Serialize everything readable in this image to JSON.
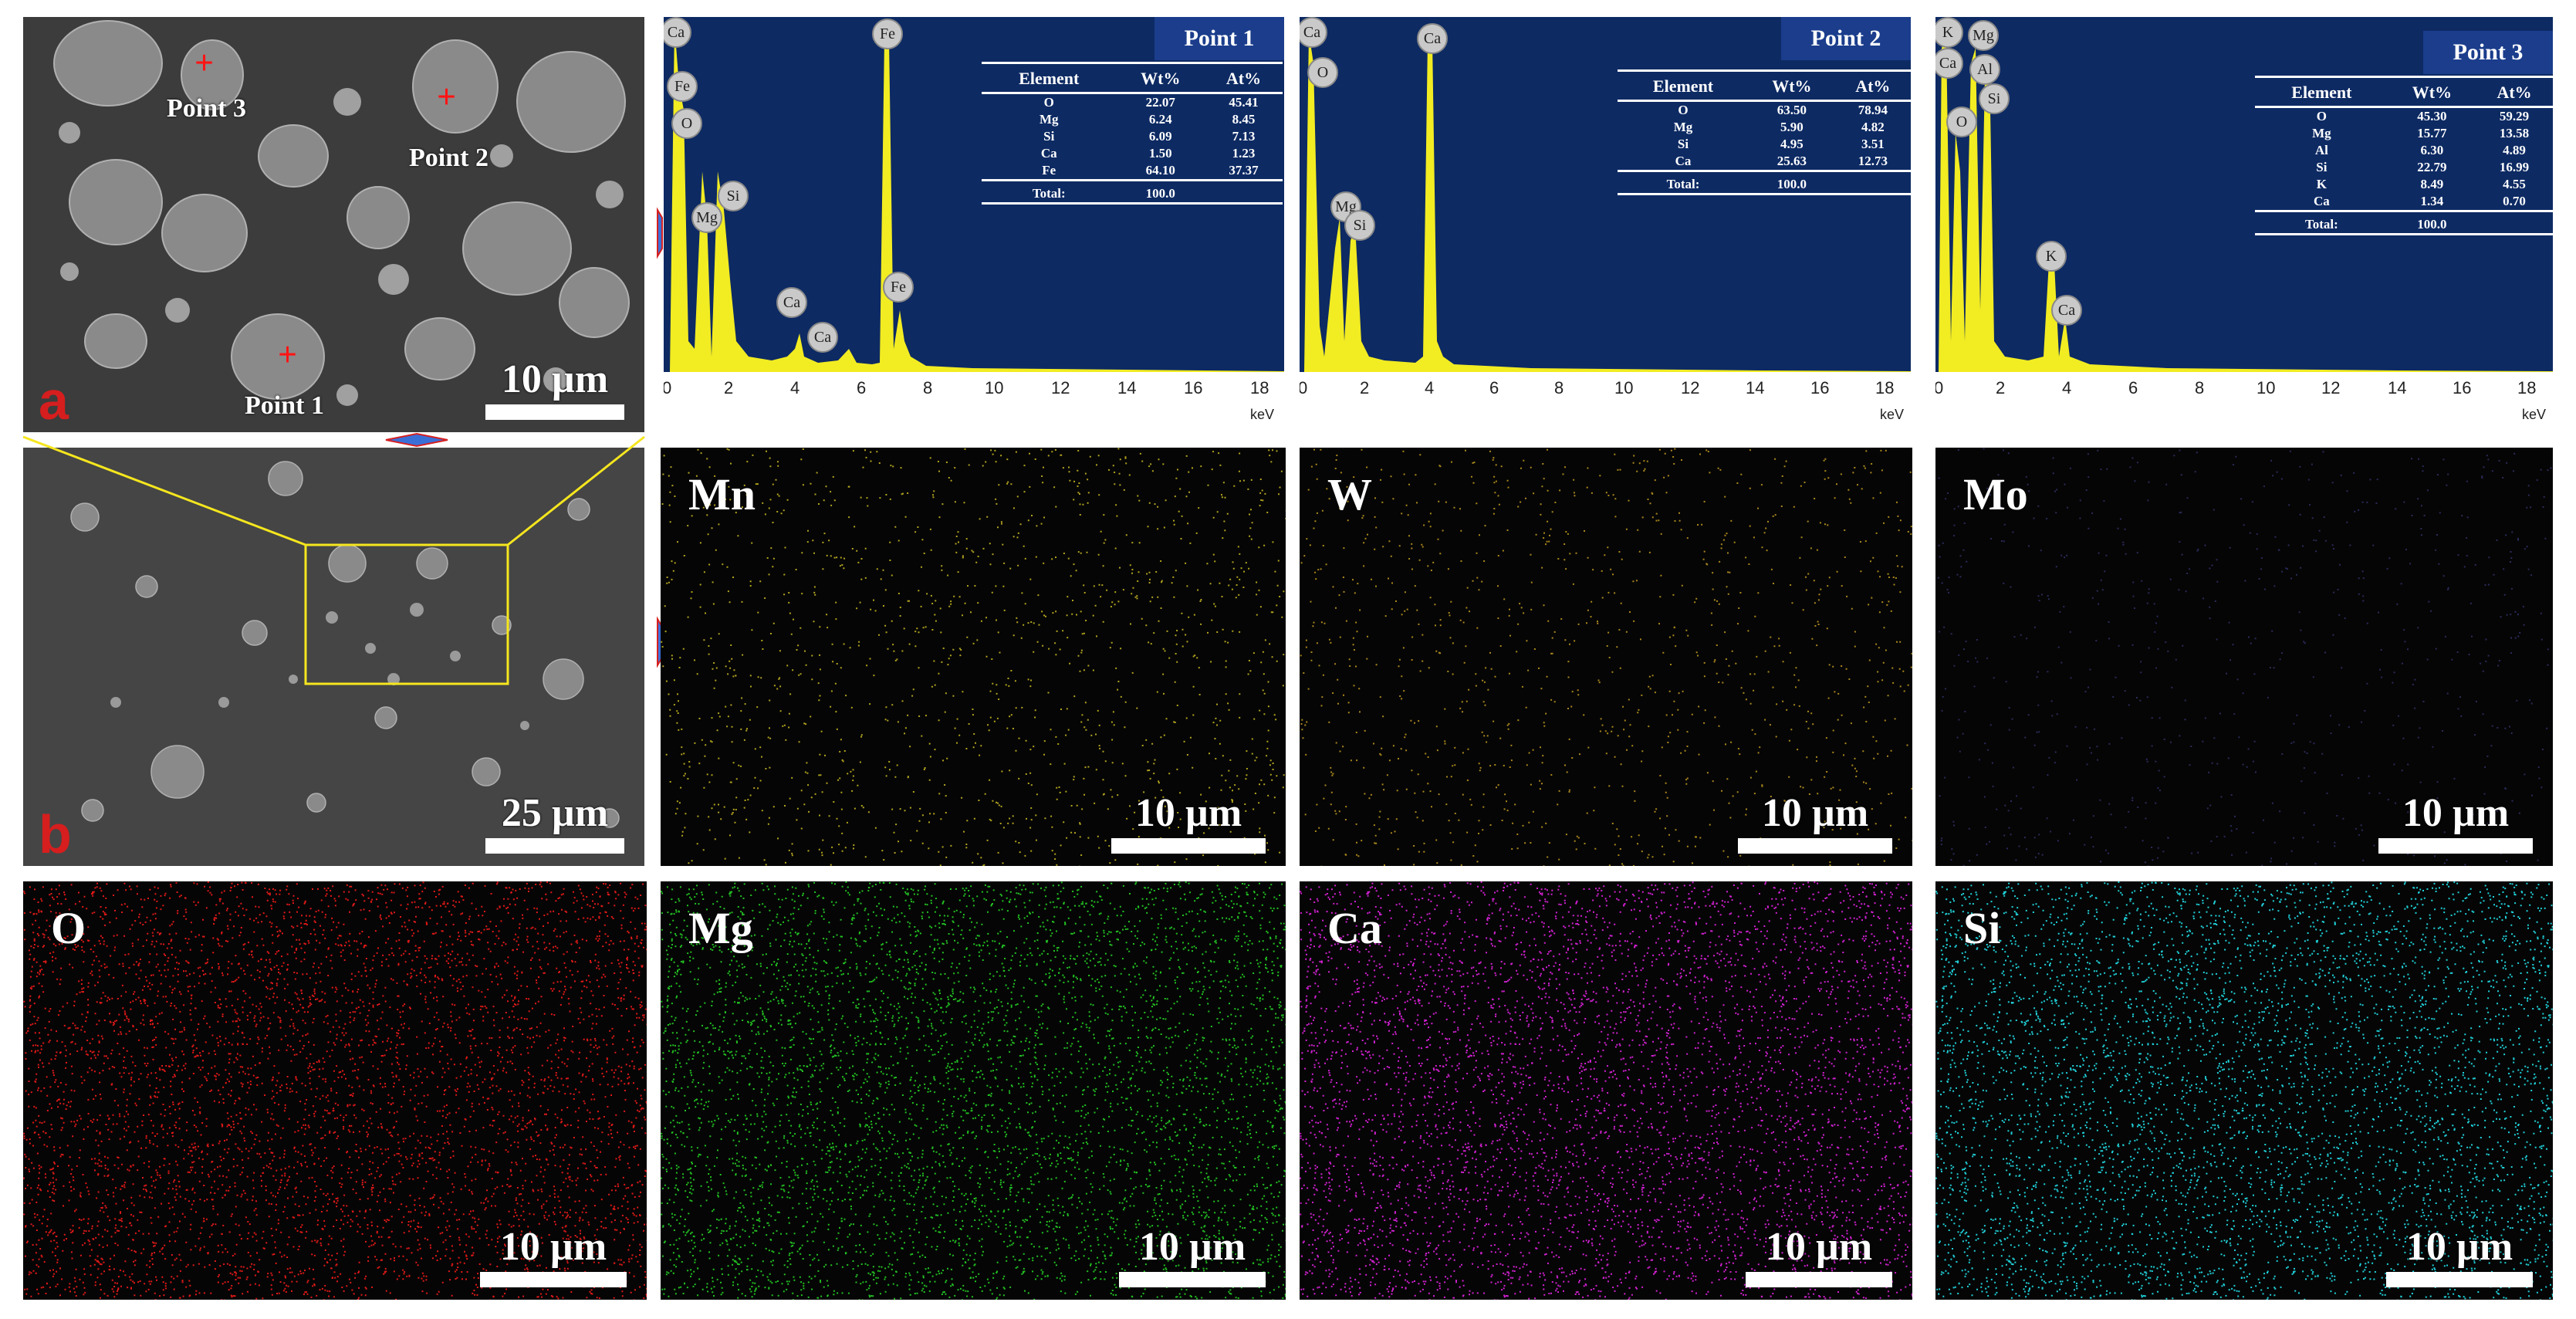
{
  "panel_a": {
    "corner_label": "a",
    "scale": "10 µm",
    "points": [
      "Point 1",
      "Point 2",
      "Point 3"
    ]
  },
  "panel_b": {
    "corner_label": "b",
    "scale": "25 µm"
  },
  "spectra": [
    {
      "title": "Point 1",
      "headers": [
        "Element",
        "Wt%",
        "At%"
      ],
      "rows": [
        [
          "O",
          "22.07",
          "45.41"
        ],
        [
          "Mg",
          "6.24",
          "8.45"
        ],
        [
          "Si",
          "6.09",
          "7.13"
        ],
        [
          "Ca",
          "1.50",
          "1.23"
        ],
        [
          "Fe",
          "64.10",
          "37.37"
        ]
      ],
      "total": [
        "Total:",
        "100.0"
      ],
      "peak_labels": [
        "Ca",
        "Fe",
        "O",
        "Mg",
        "Si",
        "Ca",
        "Ca",
        "Fe",
        "Fe"
      ]
    },
    {
      "title": "Point 2",
      "headers": [
        "Element",
        "Wt%",
        "At%"
      ],
      "rows": [
        [
          "O",
          "63.50",
          "78.94"
        ],
        [
          "Mg",
          "5.90",
          "4.82"
        ],
        [
          "Si",
          "4.95",
          "3.51"
        ],
        [
          "Ca",
          "25.63",
          "12.73"
        ]
      ],
      "total": [
        "Total:",
        "100.0"
      ],
      "peak_labels": [
        "Ca",
        "O",
        "Mg",
        "Si",
        "Ca"
      ]
    },
    {
      "title": "Point 3",
      "headers": [
        "Element",
        "Wt%",
        "At%"
      ],
      "rows": [
        [
          "O",
          "45.30",
          "59.29"
        ],
        [
          "Mg",
          "15.77",
          "13.58"
        ],
        [
          "Al",
          "6.30",
          "4.89"
        ],
        [
          "Si",
          "22.79",
          "16.99"
        ],
        [
          "K",
          "8.49",
          "4.55"
        ],
        [
          "Ca",
          "1.34",
          "0.70"
        ]
      ],
      "total": [
        "Total:",
        "100.0"
      ],
      "peak_labels": [
        "K",
        "Ca",
        "Mg",
        "Al",
        "O",
        "Si",
        "K",
        "Ca"
      ]
    }
  ],
  "x_ticks": [
    "0",
    "2",
    "4",
    "6",
    "8",
    "10",
    "12",
    "14",
    "16",
    "18"
  ],
  "x_unit": "keV",
  "maps": [
    {
      "element": "Mn",
      "scale": "10 µm",
      "color": "#b0a21e"
    },
    {
      "element": "W",
      "scale": "10 µm",
      "color": "#a8861c"
    },
    {
      "element": "Mo",
      "scale": "10 µm",
      "color": "#2a2a5a"
    },
    {
      "element": "O",
      "scale": "10 µm",
      "color": "#e01818"
    },
    {
      "element": "Mg",
      "scale": "10 µm",
      "color": "#22c022"
    },
    {
      "element": "Ca",
      "scale": "10 µm",
      "color": "#d020d0"
    },
    {
      "element": "Si",
      "scale": "10 µm",
      "color": "#20d0d8"
    }
  ],
  "colors": {
    "spectrum_bg": "#0d2a63",
    "spectrum_fill": "#f2ec22",
    "arrow": "#3b6fd8",
    "zoom_box": "#f5e61e"
  }
}
